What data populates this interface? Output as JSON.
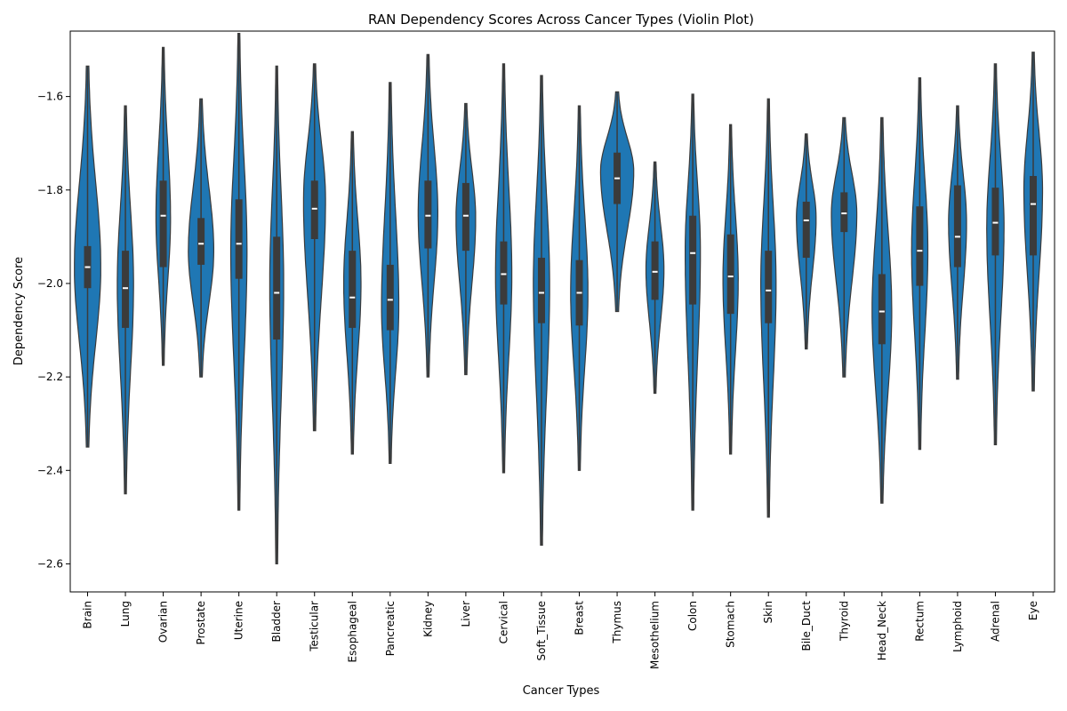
{
  "chart_data": {
    "type": "violin",
    "title": "RAN Dependency Scores Across Cancer Types (Violin Plot)",
    "xlabel": "Cancer Types",
    "ylabel": "Dependency Score",
    "ylim": [
      -2.66,
      -1.46
    ],
    "yticks": [
      -2.6,
      -2.4,
      -2.2,
      -2.0,
      -1.8,
      -1.6
    ],
    "ytick_labels": [
      "−2.6",
      "−2.4",
      "−2.2",
      "−2.0",
      "−1.8",
      "−1.6"
    ],
    "grid": false,
    "color": "#1f77b4",
    "categories": [
      "Brain",
      "Lung",
      "Ovarian",
      "Prostate",
      "Uterine",
      "Bladder",
      "Testicular",
      "Esophageal",
      "Pancreatic",
      "Kidney",
      "Liver",
      "Cervical",
      "Soft_Tissue",
      "Breast",
      "Thymus",
      "Mesothelium",
      "Colon",
      "Stomach",
      "Skin",
      "Bile_Duct",
      "Thyroid",
      "Head_Neck",
      "Rectum",
      "Lymphoid",
      "Adrenal",
      "Eye"
    ],
    "groups": [
      {
        "name": "Brain",
        "min": -2.35,
        "q1": -2.01,
        "median": -1.965,
        "q3": -1.92,
        "max": -1.535,
        "mode": -1.965,
        "width": 0.75
      },
      {
        "name": "Lung",
        "min": -2.45,
        "q1": -2.095,
        "median": -2.01,
        "q3": -1.93,
        "max": -1.62,
        "mode": -2.0,
        "width": 0.45
      },
      {
        "name": "Ovarian",
        "min": -2.175,
        "q1": -1.965,
        "median": -1.855,
        "q3": -1.78,
        "max": -1.495,
        "mode": -1.86,
        "width": 0.4
      },
      {
        "name": "Prostate",
        "min": -2.2,
        "q1": -1.96,
        "median": -1.915,
        "q3": -1.86,
        "max": -1.605,
        "mode": -1.93,
        "width": 0.72
      },
      {
        "name": "Uterine",
        "min": -2.485,
        "q1": -1.99,
        "median": -1.915,
        "q3": -1.82,
        "max": -1.465,
        "mode": -1.93,
        "width": 0.45
      },
      {
        "name": "Bladder",
        "min": -2.6,
        "q1": -2.12,
        "median": -2.02,
        "q3": -1.9,
        "max": -1.535,
        "mode": -2.0,
        "width": 0.38
      },
      {
        "name": "Testicular",
        "min": -2.315,
        "q1": -1.905,
        "median": -1.84,
        "q3": -1.78,
        "max": -1.53,
        "mode": -1.82,
        "width": 0.62
      },
      {
        "name": "Esophageal",
        "min": -2.365,
        "q1": -2.095,
        "median": -2.03,
        "q3": -1.93,
        "max": -1.675,
        "mode": -2.0,
        "width": 0.48
      },
      {
        "name": "Pancreatic",
        "min": -2.385,
        "q1": -2.1,
        "median": -2.035,
        "q3": -1.96,
        "max": -1.57,
        "mode": -2.05,
        "width": 0.48
      },
      {
        "name": "Kidney",
        "min": -2.2,
        "q1": -1.925,
        "median": -1.855,
        "q3": -1.78,
        "max": -1.51,
        "mode": -1.85,
        "width": 0.55
      },
      {
        "name": "Liver",
        "min": -2.195,
        "q1": -1.93,
        "median": -1.855,
        "q3": -1.785,
        "max": -1.615,
        "mode": -1.86,
        "width": 0.55
      },
      {
        "name": "Cervical",
        "min": -2.405,
        "q1": -2.045,
        "median": -1.98,
        "q3": -1.91,
        "max": -1.53,
        "mode": -1.98,
        "width": 0.45
      },
      {
        "name": "Soft_Tissue",
        "min": -2.56,
        "q1": -2.085,
        "median": -2.02,
        "q3": -1.945,
        "max": -1.555,
        "mode": -2.0,
        "width": 0.45
      },
      {
        "name": "Breast",
        "min": -2.4,
        "q1": -2.09,
        "median": -2.02,
        "q3": -1.95,
        "max": -1.62,
        "mode": -2.02,
        "width": 0.48
      },
      {
        "name": "Thymus",
        "min": -2.06,
        "q1": -1.83,
        "median": -1.775,
        "q3": -1.72,
        "max": -1.59,
        "mode": -1.76,
        "width": 0.95
      },
      {
        "name": "Mesothelium",
        "min": -2.235,
        "q1": -2.035,
        "median": -1.975,
        "q3": -1.91,
        "max": -1.74,
        "mode": -1.97,
        "width": 0.5
      },
      {
        "name": "Colon",
        "min": -2.485,
        "q1": -2.045,
        "median": -1.935,
        "q3": -1.855,
        "max": -1.595,
        "mode": -1.93,
        "width": 0.42
      },
      {
        "name": "Stomach",
        "min": -2.365,
        "q1": -2.065,
        "median": -1.985,
        "q3": -1.895,
        "max": -1.66,
        "mode": -1.99,
        "width": 0.42
      },
      {
        "name": "Skin",
        "min": -2.5,
        "q1": -2.085,
        "median": -2.015,
        "q3": -1.93,
        "max": -1.605,
        "mode": -2.0,
        "width": 0.42
      },
      {
        "name": "Bile_Duct",
        "min": -2.14,
        "q1": -1.945,
        "median": -1.865,
        "q3": -1.825,
        "max": -1.68,
        "mode": -1.86,
        "width": 0.55
      },
      {
        "name": "Thyroid",
        "min": -2.2,
        "q1": -1.89,
        "median": -1.85,
        "q3": -1.805,
        "max": -1.645,
        "mode": -1.85,
        "width": 0.72
      },
      {
        "name": "Head_Neck",
        "min": -2.47,
        "q1": -2.13,
        "median": -2.06,
        "q3": -1.98,
        "max": -1.645,
        "mode": -2.06,
        "width": 0.55
      },
      {
        "name": "Rectum",
        "min": -2.355,
        "q1": -2.005,
        "median": -1.93,
        "q3": -1.835,
        "max": -1.56,
        "mode": -1.93,
        "width": 0.45
      },
      {
        "name": "Lymphoid",
        "min": -2.205,
        "q1": -1.965,
        "median": -1.9,
        "q3": -1.79,
        "max": -1.62,
        "mode": -1.87,
        "width": 0.5
      },
      {
        "name": "Adrenal",
        "min": -2.345,
        "q1": -1.94,
        "median": -1.87,
        "q3": -1.795,
        "max": -1.53,
        "mode": -1.88,
        "width": 0.48
      },
      {
        "name": "Eye",
        "min": -2.23,
        "q1": -1.94,
        "median": -1.83,
        "q3": -1.77,
        "max": -1.505,
        "mode": -1.8,
        "width": 0.52
      }
    ]
  }
}
